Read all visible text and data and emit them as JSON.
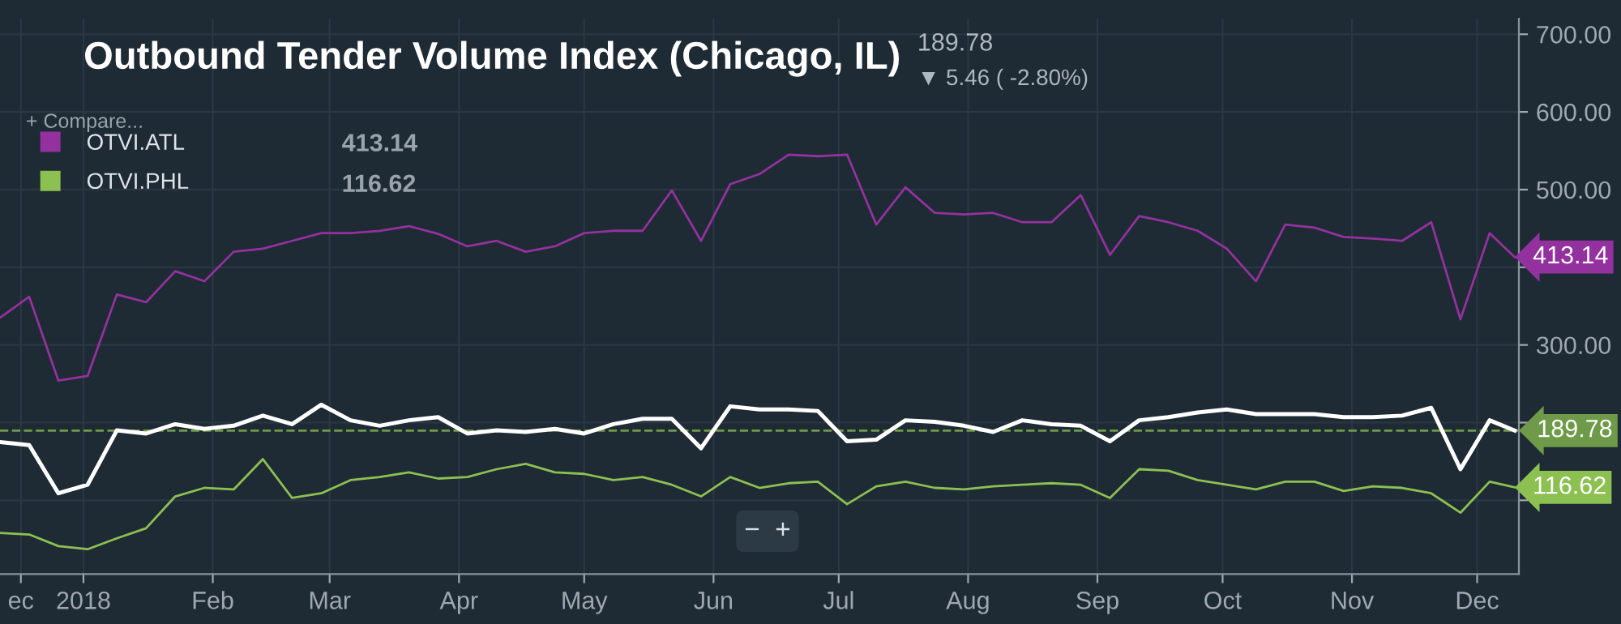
{
  "chart_data": {
    "type": "line",
    "title": "Outbound Tender Volume Index (Chicago, IL)",
    "annotations": [
      "189.78",
      "▼ 5.46 ( -2.80%)",
      "+ Compare...",
      "−  +"
    ],
    "x": [
      "2017-12-12",
      "2017-12-19",
      "2017-12-26",
      "2018-01-02",
      "2018-01-09",
      "2018-01-16",
      "2018-01-23",
      "2018-01-30",
      "2018-02-06",
      "2018-02-13",
      "2018-02-20",
      "2018-02-27",
      "2018-03-06",
      "2018-03-13",
      "2018-03-20",
      "2018-03-27",
      "2018-04-03",
      "2018-04-10",
      "2018-04-17",
      "2018-04-24",
      "2018-05-01",
      "2018-05-08",
      "2018-05-15",
      "2018-05-22",
      "2018-05-29",
      "2018-06-05",
      "2018-06-12",
      "2018-06-19",
      "2018-06-26",
      "2018-07-03",
      "2018-07-10",
      "2018-07-17",
      "2018-07-24",
      "2018-07-31",
      "2018-08-07",
      "2018-08-14",
      "2018-08-21",
      "2018-08-28",
      "2018-09-04",
      "2018-09-11",
      "2018-09-18",
      "2018-09-25",
      "2018-10-02",
      "2018-10-09",
      "2018-10-16",
      "2018-10-23",
      "2018-10-30",
      "2018-11-06",
      "2018-11-13",
      "2018-11-20",
      "2018-11-27",
      "2018-12-04",
      "2018-12-10"
    ],
    "series": [
      {
        "color": "#ffffff",
        "values": [
          175,
          171,
          109,
          120,
          190,
          186,
          198,
          192,
          196,
          209,
          198,
          223,
          203,
          196,
          203,
          207,
          186,
          190,
          188,
          192,
          186,
          198,
          205,
          205,
          167,
          221,
          217,
          217,
          215,
          176,
          178,
          203,
          201,
          196,
          188,
          203,
          198,
          196,
          176,
          203,
          207,
          213,
          217,
          211,
          211,
          211,
          207,
          207,
          209,
          219,
          140,
          203,
          189.78
        ]
      },
      {
        "name": "OTVI.ATL",
        "color": "#93329e",
        "values": [
          335,
          362,
          254,
          260,
          365,
          355,
          395,
          382,
          420,
          424,
          434,
          444,
          444,
          447,
          453,
          443,
          427,
          434,
          420,
          427,
          444,
          447,
          447,
          499,
          434,
          507,
          520,
          545,
          543,
          545,
          455,
          503,
          470,
          468,
          470,
          458,
          458,
          493,
          416,
          466,
          458,
          447,
          424,
          382,
          455,
          451,
          439,
          437,
          434,
          458,
          333,
          444,
          413.14
        ],
        "value_labels": [
          null,
          null,
          null,
          null,
          null,
          null,
          null,
          null,
          null,
          null,
          null,
          null,
          null,
          null,
          null,
          null,
          null,
          null,
          null,
          null,
          null,
          null,
          null,
          null,
          null,
          null,
          null,
          null,
          null,
          null,
          null,
          null,
          null,
          null,
          null,
          null,
          null,
          null,
          null,
          null,
          null,
          null,
          null,
          null,
          null,
          null,
          null,
          null,
          null,
          null,
          null,
          null,
          "413.14"
        ]
      },
      {
        "name": "OTVI.PHL",
        "color": "#8cc152",
        "values": [
          58,
          56,
          41,
          37,
          51,
          64,
          105,
          116,
          114,
          153,
          103,
          109,
          126,
          130,
          136,
          128,
          130,
          140,
          147,
          136,
          134,
          126,
          130,
          120,
          105,
          130,
          116,
          122,
          124,
          95,
          118,
          124,
          116,
          114,
          118,
          120,
          122,
          120,
          103,
          140,
          138,
          126,
          120,
          114,
          124,
          124,
          112,
          118,
          116,
          109,
          84,
          124,
          116.62
        ],
        "value_labels": [
          null,
          null,
          null,
          null,
          null,
          null,
          null,
          null,
          null,
          null,
          null,
          null,
          null,
          null,
          null,
          null,
          null,
          null,
          null,
          null,
          null,
          null,
          null,
          null,
          null,
          null,
          null,
          null,
          null,
          null,
          null,
          null,
          null,
          null,
          null,
          null,
          null,
          null,
          null,
          null,
          null,
          null,
          null,
          null,
          null,
          null,
          null,
          null,
          null,
          null,
          null,
          null,
          "116.62"
        ]
      }
    ],
    "xlim": [
      "2017-12-12",
      "2018-12-11"
    ],
    "xticks": [
      {
        "value": "2017-12-17",
        "label": "ec"
      },
      {
        "value": "2018-01-01",
        "label": "2018"
      },
      {
        "value": "2018-02-01",
        "label": "Feb"
      },
      {
        "value": "2018-03-01",
        "label": "Mar"
      },
      {
        "value": "2018-04-01",
        "label": "Apr"
      },
      {
        "value": "2018-05-01",
        "label": "May"
      },
      {
        "value": "2018-06-01",
        "label": "Jun"
      },
      {
        "value": "2018-07-01",
        "label": "Jul"
      },
      {
        "value": "2018-08-01",
        "label": "Aug"
      },
      {
        "value": "2018-09-01",
        "label": "Sep"
      },
      {
        "value": "2018-10-01",
        "label": "Oct"
      },
      {
        "value": "2018-11-01",
        "label": "Nov"
      },
      {
        "value": "2018-12-01",
        "label": "Dec"
      }
    ],
    "ylim": [
      5,
      720
    ],
    "yticks": [
      {
        "value": 100,
        "label": null
      },
      {
        "value": 200,
        "label": null
      },
      {
        "value": 300,
        "label": "300.00"
      },
      {
        "value": 400,
        "label": null
      },
      {
        "value": 500,
        "label": "500.00"
      },
      {
        "value": 600,
        "label": "600.00"
      },
      {
        "value": 700,
        "label": "700.00"
      }
    ],
    "ref_lines": [
      {
        "axis": "y",
        "value": 189.78,
        "label": "189.78",
        "color": "#6f9a4a",
        "line_style": "dashed"
      }
    ],
    "grid": true,
    "legend": "top left"
  }
}
